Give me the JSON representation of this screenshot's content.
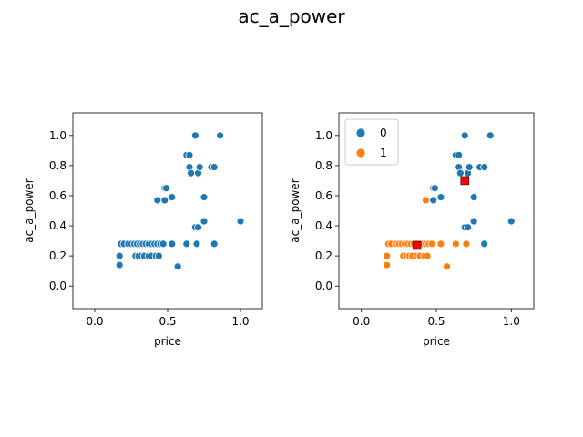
{
  "figure": {
    "title": "ac_a_power"
  },
  "colors": {
    "cluster0": "#1f77b4",
    "cluster1": "#ff7f0e",
    "centroid": "#ff0000",
    "edge": "#ffffff"
  },
  "chart_data": [
    {
      "type": "scatter",
      "xlabel": "price",
      "ylabel": "ac_a_power",
      "xlim": [
        -0.15,
        1.15
      ],
      "ylim": [
        -0.15,
        1.15
      ],
      "xticks": [
        "0.0",
        "0.5",
        "1.0"
      ],
      "yticks": [
        "0.0",
        "0.2",
        "0.4",
        "0.6",
        "0.8",
        "1.0"
      ],
      "legend": false,
      "series": [
        {
          "color": "#1f77b4",
          "points": [
            [
              0.17,
              0.14
            ],
            [
              0.17,
              0.2
            ],
            [
              0.18,
              0.28
            ],
            [
              0.2,
              0.28
            ],
            [
              0.23,
              0.28
            ],
            [
              0.25,
              0.28
            ],
            [
              0.27,
              0.28
            ],
            [
              0.29,
              0.28
            ],
            [
              0.31,
              0.28
            ],
            [
              0.33,
              0.28
            ],
            [
              0.35,
              0.28
            ],
            [
              0.37,
              0.28
            ],
            [
              0.39,
              0.28
            ],
            [
              0.41,
              0.28
            ],
            [
              0.43,
              0.28
            ],
            [
              0.45,
              0.28
            ],
            [
              0.47,
              0.28
            ],
            [
              0.53,
              0.28
            ],
            [
              0.28,
              0.2
            ],
            [
              0.3,
              0.2
            ],
            [
              0.32,
              0.2
            ],
            [
              0.34,
              0.2
            ],
            [
              0.37,
              0.2
            ],
            [
              0.39,
              0.2
            ],
            [
              0.42,
              0.2
            ],
            [
              0.44,
              0.2
            ],
            [
              0.57,
              0.13
            ],
            [
              0.63,
              0.28
            ],
            [
              0.7,
              0.28
            ],
            [
              0.82,
              0.28
            ],
            [
              0.43,
              0.57
            ],
            [
              0.48,
              0.57
            ],
            [
              0.53,
              0.59
            ],
            [
              0.48,
              0.65
            ],
            [
              0.49,
              0.65
            ],
            [
              0.75,
              0.59
            ],
            [
              0.69,
              0.39
            ],
            [
              0.71,
              0.39
            ],
            [
              0.75,
              0.43
            ],
            [
              1.0,
              0.43
            ],
            [
              0.63,
              0.87
            ],
            [
              0.65,
              0.87
            ],
            [
              0.65,
              0.79
            ],
            [
              0.66,
              0.75
            ],
            [
              0.71,
              0.75
            ],
            [
              0.72,
              0.79
            ],
            [
              0.8,
              0.79
            ],
            [
              0.82,
              0.79
            ],
            [
              0.69,
              1.0
            ],
            [
              0.86,
              1.0
            ]
          ]
        }
      ]
    },
    {
      "type": "scatter",
      "xlabel": "price",
      "ylabel": "ac_a_power",
      "xlim": [
        -0.15,
        1.15
      ],
      "ylim": [
        -0.15,
        1.15
      ],
      "xticks": [
        "0.0",
        "0.5",
        "1.0"
      ],
      "yticks": [
        "0.0",
        "0.2",
        "0.4",
        "0.6",
        "0.8",
        "1.0"
      ],
      "legend": "upper-left",
      "series": [
        {
          "name": "0",
          "color": "#1f77b4",
          "points": [
            [
              0.48,
              0.57
            ],
            [
              0.53,
              0.59
            ],
            [
              0.48,
              0.65
            ],
            [
              0.49,
              0.65
            ],
            [
              0.75,
              0.59
            ],
            [
              0.69,
              0.39
            ],
            [
              0.71,
              0.39
            ],
            [
              0.75,
              0.43
            ],
            [
              1.0,
              0.43
            ],
            [
              0.63,
              0.87
            ],
            [
              0.65,
              0.87
            ],
            [
              0.65,
              0.79
            ],
            [
              0.66,
              0.75
            ],
            [
              0.71,
              0.75
            ],
            [
              0.72,
              0.79
            ],
            [
              0.79,
              0.79
            ],
            [
              0.82,
              0.79
            ],
            [
              0.69,
              1.0
            ],
            [
              0.86,
              1.0
            ],
            [
              0.82,
              0.28
            ]
          ]
        },
        {
          "name": "1",
          "color": "#ff7f0e",
          "points": [
            [
              0.17,
              0.14
            ],
            [
              0.17,
              0.2
            ],
            [
              0.18,
              0.28
            ],
            [
              0.2,
              0.28
            ],
            [
              0.23,
              0.28
            ],
            [
              0.25,
              0.28
            ],
            [
              0.27,
              0.28
            ],
            [
              0.29,
              0.28
            ],
            [
              0.31,
              0.28
            ],
            [
              0.33,
              0.28
            ],
            [
              0.35,
              0.28
            ],
            [
              0.37,
              0.28
            ],
            [
              0.39,
              0.28
            ],
            [
              0.41,
              0.28
            ],
            [
              0.43,
              0.28
            ],
            [
              0.45,
              0.28
            ],
            [
              0.47,
              0.28
            ],
            [
              0.53,
              0.28
            ],
            [
              0.28,
              0.2
            ],
            [
              0.3,
              0.2
            ],
            [
              0.32,
              0.2
            ],
            [
              0.34,
              0.2
            ],
            [
              0.37,
              0.2
            ],
            [
              0.39,
              0.2
            ],
            [
              0.42,
              0.2
            ],
            [
              0.44,
              0.2
            ],
            [
              0.57,
              0.13
            ],
            [
              0.63,
              0.28
            ],
            [
              0.7,
              0.28
            ],
            [
              0.43,
              0.57
            ]
          ]
        }
      ],
      "centroids": [
        [
          0.37,
          0.27
        ],
        [
          0.69,
          0.7
        ]
      ]
    }
  ]
}
